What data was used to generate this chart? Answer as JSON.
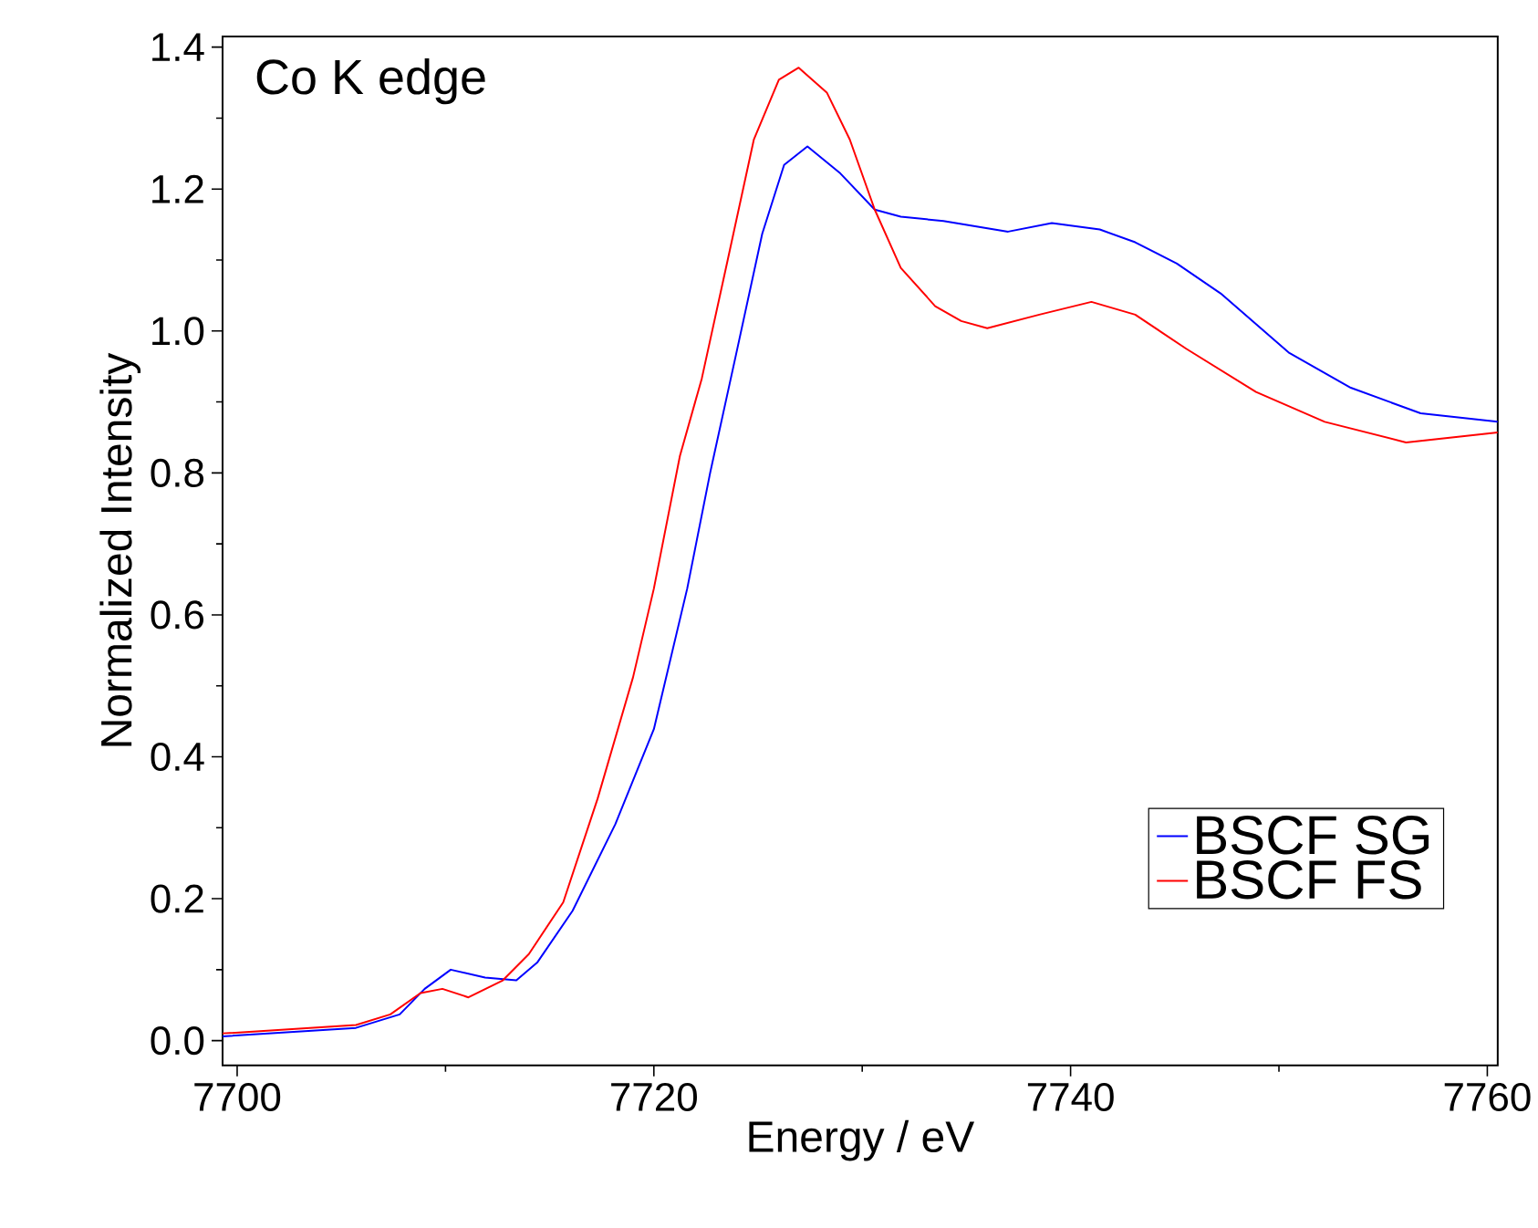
{
  "chart_data": {
    "type": "line",
    "xlabel": "Energy / eV",
    "ylabel": "Normalized Intensity",
    "annotations": [
      "Co K edge"
    ],
    "xlim": [
      7699.3,
      7760.5
    ],
    "ylim": [
      -0.035,
      1.415
    ],
    "xticks": [
      7700,
      7720,
      7740,
      7760
    ],
    "yticks": [
      {
        "value": 0,
        "label": "0.0"
      },
      {
        "value": 0.2,
        "label": "0.2"
      },
      {
        "value": 0.4,
        "label": "0.4"
      },
      {
        "value": 0.6,
        "label": "0.6"
      },
      {
        "value": 0.8,
        "label": "0.8"
      },
      {
        "value": 1.0,
        "label": "1.0"
      },
      {
        "value": 1.2,
        "label": "1.2"
      },
      {
        "value": 1.4,
        "label": "1.4"
      }
    ],
    "grid": false,
    "legend": "bottom right",
    "marker": "none",
    "line_style": "solid",
    "series": [
      {
        "name": "BSCF SG",
        "color": "#0000ff",
        "x": [
          7699.3,
          7705.7,
          7707.8,
          7709.0,
          7710.25,
          7711.9,
          7713.4,
          7714.4,
          7716.1,
          7718.15,
          7720.0,
          7721.6,
          7722.7,
          7723.96,
          7725.2,
          7726.25,
          7727.37,
          7728.95,
          7730.6,
          7731.85,
          7733.9,
          7737.0,
          7739.1,
          7741.4,
          7743.1,
          7745.1,
          7747.2,
          7750.5,
          7753.45,
          7756.8,
          7760.5
        ],
        "values": [
          0.006,
          0.018,
          0.037,
          0.073,
          0.1,
          0.089,
          0.085,
          0.11,
          0.183,
          0.305,
          0.439,
          0.637,
          0.8,
          0.969,
          1.137,
          1.234,
          1.26,
          1.222,
          1.171,
          1.161,
          1.155,
          1.14,
          1.152,
          1.143,
          1.125,
          1.095,
          1.053,
          0.969,
          0.92,
          0.884,
          0.872
        ]
      },
      {
        "name": "BSCF FS",
        "color": "#ff0000",
        "x": [
          7699.3,
          7705.7,
          7707.35,
          7708.8,
          7709.85,
          7711.1,
          7712.75,
          7714.0,
          7715.65,
          7717.3,
          7719.0,
          7720.0,
          7721.25,
          7722.3,
          7723.55,
          7724.8,
          7726.0,
          7726.95,
          7728.3,
          7729.4,
          7730.6,
          7731.85,
          7733.5,
          7734.75,
          7736.0,
          7738.5,
          7741.0,
          7743.1,
          7745.55,
          7748.9,
          7752.2,
          7756.1,
          7760.5
        ],
        "values": [
          0.01,
          0.022,
          0.037,
          0.067,
          0.073,
          0.061,
          0.085,
          0.122,
          0.195,
          0.341,
          0.512,
          0.637,
          0.824,
          0.933,
          1.101,
          1.27,
          1.354,
          1.371,
          1.336,
          1.27,
          1.171,
          1.089,
          1.035,
          1.014,
          1.004,
          1.023,
          1.041,
          1.023,
          0.975,
          0.914,
          0.872,
          0.843,
          0.857
        ]
      }
    ]
  }
}
